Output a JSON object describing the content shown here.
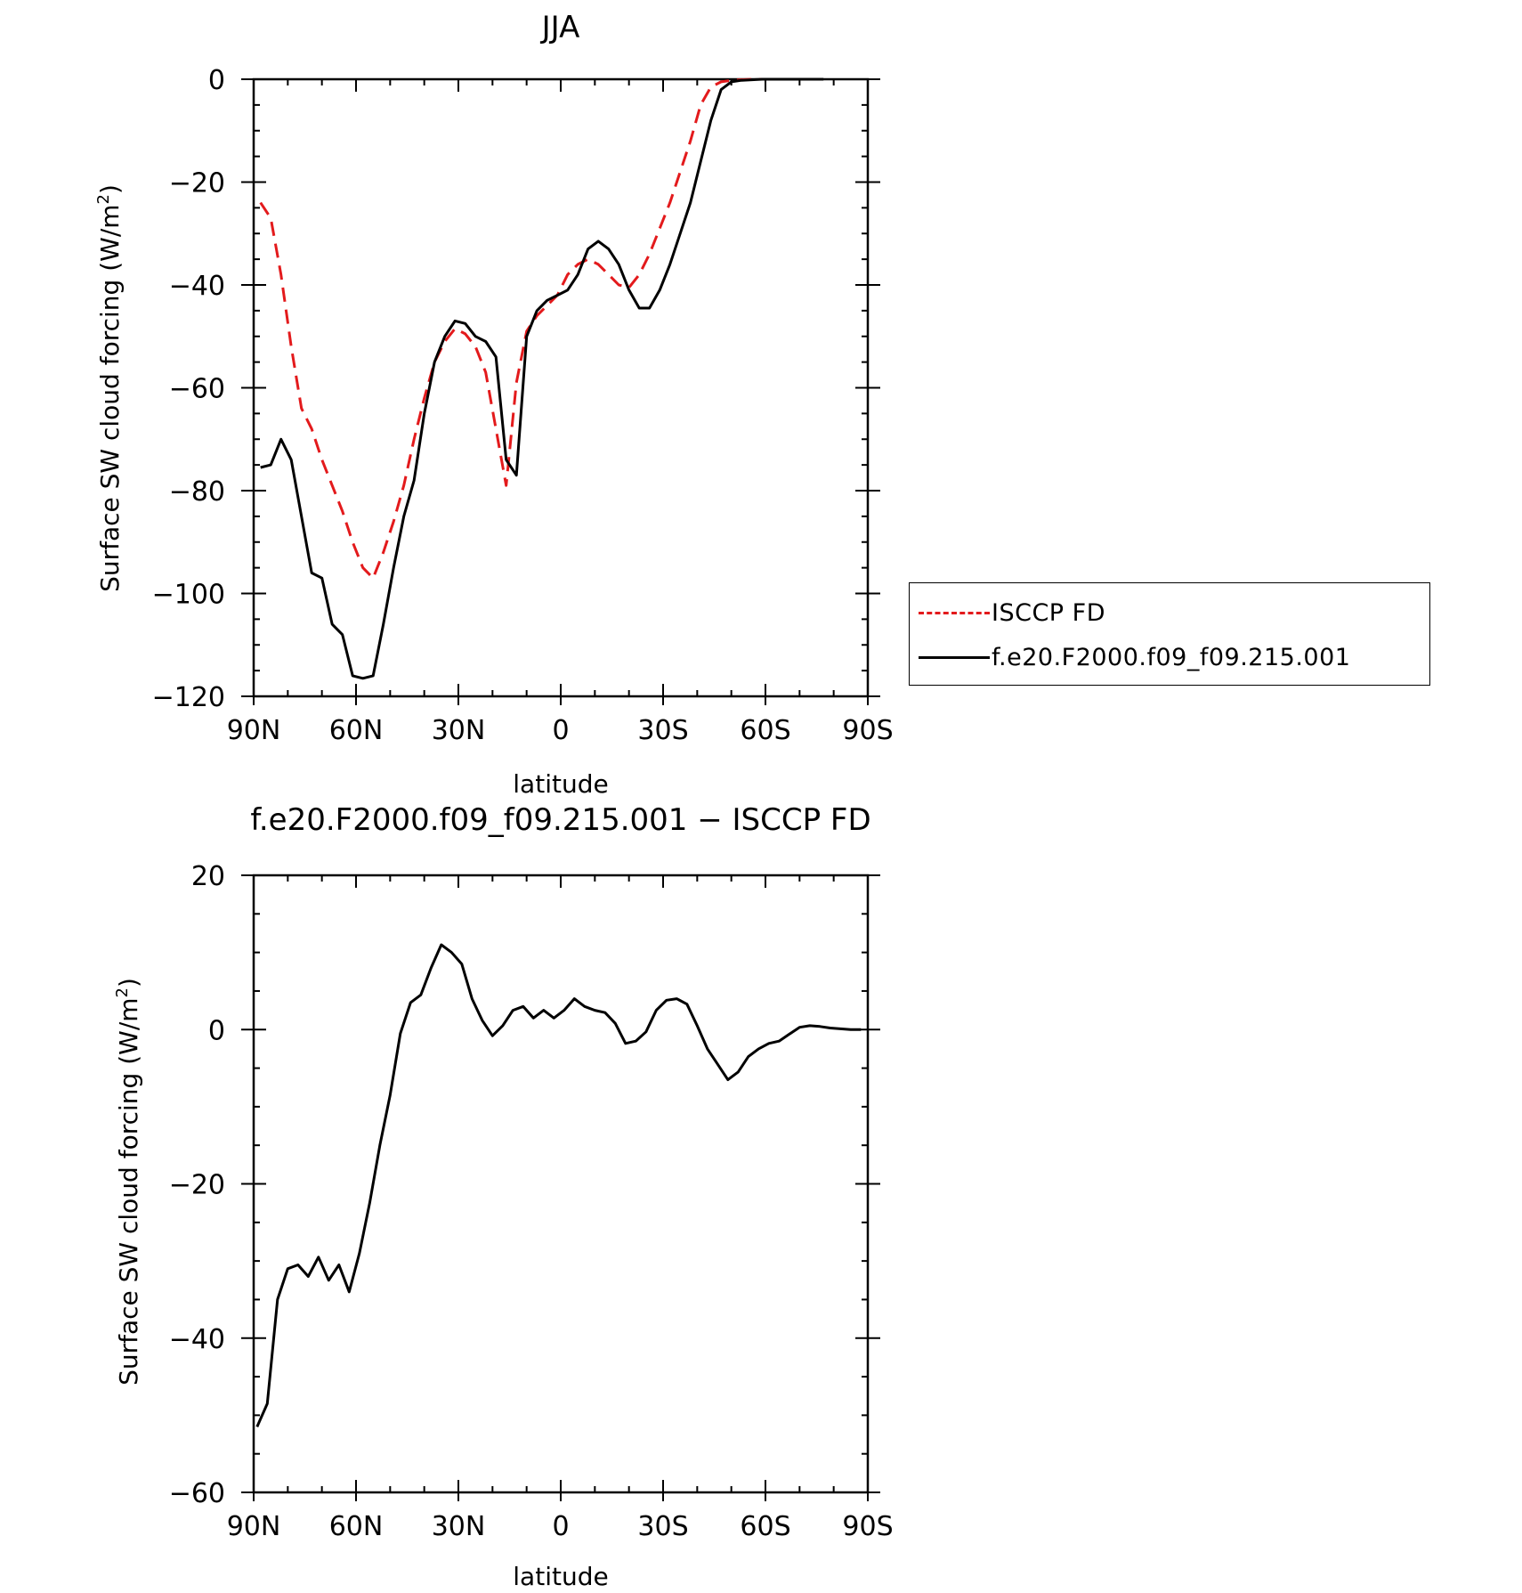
{
  "chart_data": [
    {
      "type": "line",
      "title": "JJA",
      "xlabel": "latitude",
      "ylabel": "Surface SW cloud forcing (W/m2)",
      "ylabel_base": "Surface SW cloud forcing (W/m",
      "ylabel_sup": "2",
      "ylabel_end": ")",
      "xlim": [
        90,
        -90
      ],
      "ylim": [
        -120,
        0
      ],
      "x_ticks": [
        90,
        60,
        30,
        0,
        -30,
        -60,
        -90
      ],
      "x_tick_labels": [
        "90N",
        "60N",
        "30N",
        "0",
        "30S",
        "60S",
        "90S"
      ],
      "y_ticks": [
        0,
        -20,
        -40,
        -60,
        -80,
        -100,
        -120
      ],
      "y_tick_labels": [
        "0",
        "−20",
        "−40",
        "−60",
        "−80",
        "−100",
        "−120"
      ],
      "legend": {
        "placement": "right",
        "entries": [
          "ISCCP FD",
          "f.e20.F2000.f09_f09.215.001"
        ]
      },
      "series": [
        {
          "name": "ISCCP FD",
          "color": "#e31a1c",
          "style": "dashed",
          "x": [
            88,
            85,
            82,
            79,
            76,
            73,
            70,
            67,
            64,
            61,
            58,
            55,
            52,
            49,
            46,
            43,
            40,
            37,
            34,
            31,
            28,
            25,
            22,
            19,
            16,
            13,
            10,
            7,
            4,
            1,
            -2,
            -5,
            -8,
            -11,
            -14,
            -17,
            -20,
            -23,
            -26,
            -29,
            -32,
            -35,
            -38,
            -41,
            -44,
            -47,
            -50,
            -53,
            -56,
            -59,
            -62,
            -65,
            -68,
            -71,
            -74,
            -77
          ],
          "y": [
            -24,
            -27,
            -38,
            -52,
            -64,
            -68,
            -74,
            -79,
            -84,
            -90,
            -95,
            -97,
            -92,
            -86,
            -79,
            -70,
            -62,
            -55,
            -51,
            -48.5,
            -49.5,
            -52,
            -57,
            -68,
            -79,
            -59,
            -49,
            -46,
            -44,
            -42,
            -38,
            -36,
            -35,
            -36,
            -38,
            -40,
            -40.5,
            -38,
            -34,
            -29,
            -24,
            -18,
            -12,
            -5,
            -1.5,
            -0.5,
            -0.2,
            -0.1,
            0,
            0,
            0,
            0,
            0,
            0,
            0,
            0
          ]
        },
        {
          "name": "f.e20.F2000.f09_f09.215.001",
          "color": "#000000",
          "style": "solid",
          "x": [
            88,
            85,
            82,
            79,
            76,
            73,
            70,
            67,
            64,
            61,
            58,
            55,
            52,
            49,
            46,
            43,
            40,
            37,
            34,
            31,
            28,
            25,
            22,
            19,
            16,
            13,
            10,
            7,
            4,
            1,
            -2,
            -5,
            -8,
            -11,
            -14,
            -17,
            -20,
            -23,
            -26,
            -29,
            -32,
            -35,
            -38,
            -41,
            -44,
            -47,
            -50,
            -53,
            -56,
            -59,
            -62,
            -65,
            -68,
            -71,
            -74,
            -77
          ],
          "y": [
            -75.5,
            -75,
            -70,
            -74,
            -85,
            -96,
            -97,
            -106,
            -108,
            -116,
            -116.5,
            -116,
            -106,
            -95,
            -85,
            -78,
            -65,
            -55,
            -50,
            -47,
            -47.5,
            -50,
            -51,
            -54,
            -74,
            -77,
            -50,
            -45,
            -43,
            -42,
            -41,
            -38,
            -33,
            -31.5,
            -33,
            -36,
            -41,
            -44.5,
            -44.5,
            -41,
            -36,
            -30,
            -24,
            -16,
            -8,
            -2,
            -0.5,
            -0.2,
            -0.1,
            0,
            0,
            0,
            0,
            0,
            0,
            0
          ]
        }
      ]
    },
    {
      "type": "line",
      "title": "f.e20.F2000.f09_f09.215.001 − ISCCP FD",
      "xlabel": "latitude",
      "ylabel": "Surface SW cloud forcing (W/m2)",
      "ylabel_base": "Surface SW cloud forcing (W/m",
      "ylabel_sup": "2",
      "ylabel_end": ")",
      "xlim": [
        90,
        -90
      ],
      "ylim": [
        -60,
        20
      ],
      "x_ticks": [
        90,
        60,
        30,
        0,
        -30,
        -60,
        -90
      ],
      "x_tick_labels": [
        "90N",
        "60N",
        "30N",
        "0",
        "30S",
        "60S",
        "90S"
      ],
      "y_ticks": [
        20,
        0,
        -20,
        -40,
        -60
      ],
      "y_tick_labels": [
        "20",
        "0",
        "−20",
        "−40",
        "−60"
      ],
      "series": [
        {
          "color": "#000000",
          "style": "solid",
          "x": [
            89,
            86,
            83,
            80,
            77,
            74,
            71,
            68,
            65,
            62,
            59,
            56,
            53,
            50,
            47,
            44,
            41,
            38,
            35,
            32,
            29,
            26,
            23,
            20,
            17,
            14,
            11,
            8,
            5,
            2,
            -1,
            -4,
            -7,
            -10,
            -13,
            -16,
            -19,
            -22,
            -25,
            -28,
            -31,
            -34,
            -37,
            -40,
            -43,
            -46,
            -49,
            -52,
            -55,
            -58,
            -61,
            -64,
            -67,
            -70,
            -73,
            -76,
            -79,
            -82,
            -85,
            -88
          ],
          "y": [
            -51.5,
            -48.5,
            -35,
            -31,
            -30.5,
            -32,
            -29.5,
            -32.5,
            -30.5,
            -34,
            -29,
            -22.5,
            -15,
            -8.5,
            -0.5,
            3.5,
            4.5,
            8,
            11,
            10,
            8.5,
            4,
            1.2,
            -0.8,
            0.5,
            2.5,
            3,
            1.5,
            2.5,
            1.5,
            2.5,
            4,
            3,
            2.5,
            2.2,
            0.8,
            -1.8,
            -1.5,
            -0.3,
            2.5,
            3.8,
            4,
            3.3,
            0.5,
            -2.5,
            -4.5,
            -6.5,
            -5.5,
            -3.5,
            -2.5,
            -1.8,
            -1.5,
            -0.6,
            0.3,
            0.5,
            0.4,
            0.2,
            0.1,
            0,
            0
          ]
        }
      ]
    }
  ]
}
